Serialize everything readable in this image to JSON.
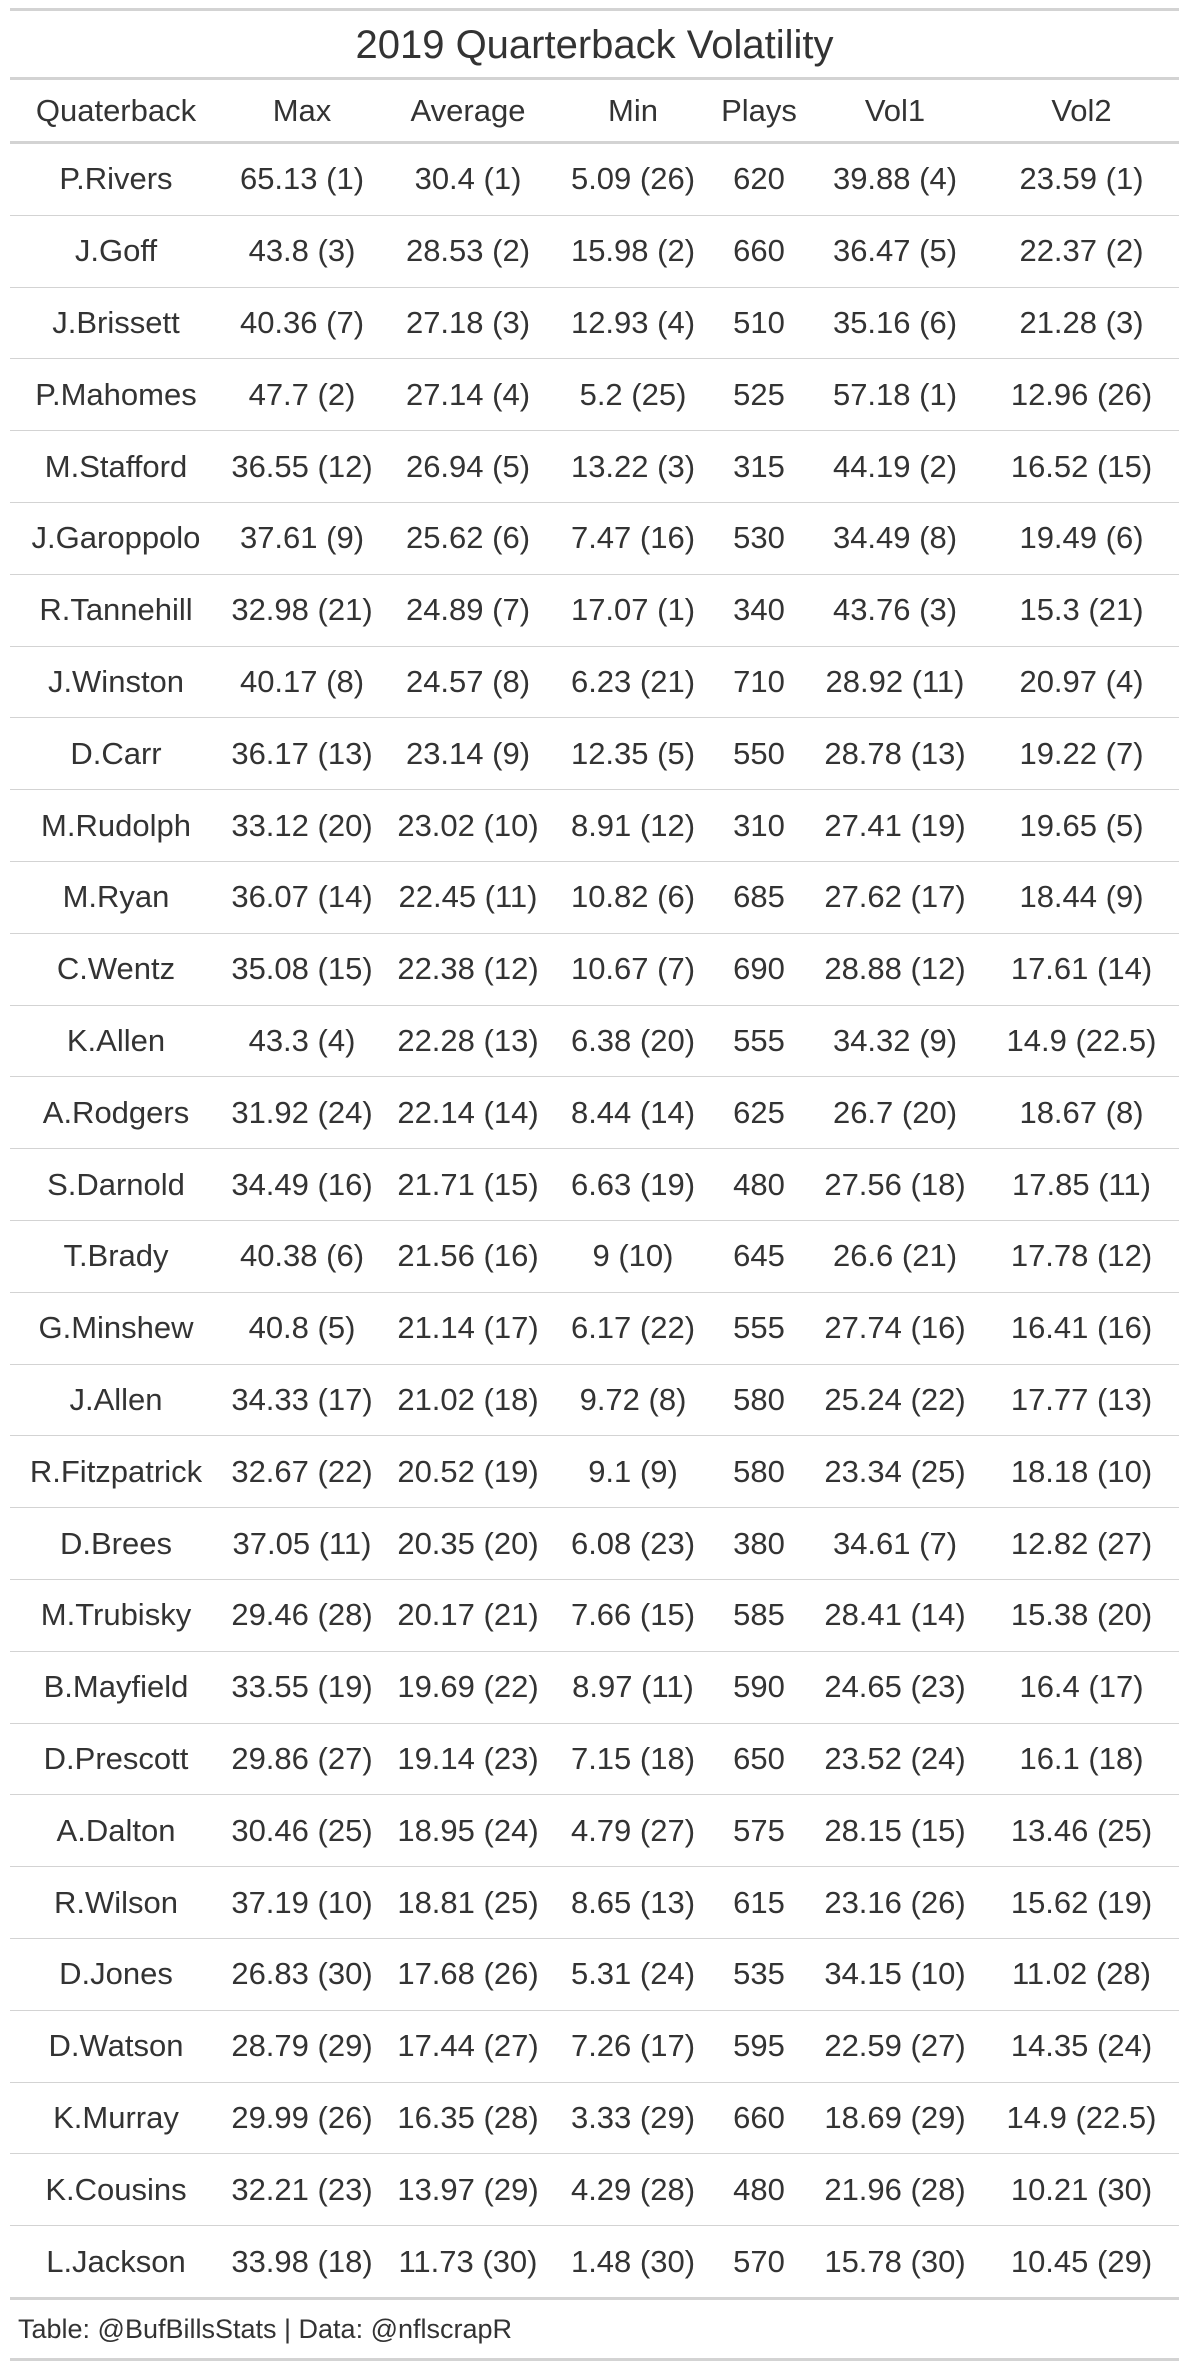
{
  "title": "2019 Quarterback Volatility",
  "columns": [
    "Quaterback",
    "Max",
    "Average",
    "Min",
    "Plays",
    "Vol1",
    "Vol2"
  ],
  "rows": [
    [
      "P.Rivers",
      "65.13 (1)",
      "30.4 (1)",
      "5.09 (26)",
      "620",
      "39.88 (4)",
      "23.59 (1)"
    ],
    [
      "J.Goff",
      "43.8 (3)",
      "28.53 (2)",
      "15.98 (2)",
      "660",
      "36.47 (5)",
      "22.37 (2)"
    ],
    [
      "J.Brissett",
      "40.36 (7)",
      "27.18 (3)",
      "12.93 (4)",
      "510",
      "35.16 (6)",
      "21.28 (3)"
    ],
    [
      "P.Mahomes",
      "47.7 (2)",
      "27.14 (4)",
      "5.2 (25)",
      "525",
      "57.18 (1)",
      "12.96 (26)"
    ],
    [
      "M.Stafford",
      "36.55 (12)",
      "26.94 (5)",
      "13.22 (3)",
      "315",
      "44.19 (2)",
      "16.52 (15)"
    ],
    [
      "J.Garoppolo",
      "37.61 (9)",
      "25.62 (6)",
      "7.47 (16)",
      "530",
      "34.49 (8)",
      "19.49 (6)"
    ],
    [
      "R.Tannehill",
      "32.98 (21)",
      "24.89 (7)",
      "17.07 (1)",
      "340",
      "43.76 (3)",
      "15.3 (21)"
    ],
    [
      "J.Winston",
      "40.17 (8)",
      "24.57 (8)",
      "6.23 (21)",
      "710",
      "28.92 (11)",
      "20.97 (4)"
    ],
    [
      "D.Carr",
      "36.17 (13)",
      "23.14 (9)",
      "12.35 (5)",
      "550",
      "28.78 (13)",
      "19.22 (7)"
    ],
    [
      "M.Rudolph",
      "33.12 (20)",
      "23.02 (10)",
      "8.91 (12)",
      "310",
      "27.41 (19)",
      "19.65 (5)"
    ],
    [
      "M.Ryan",
      "36.07 (14)",
      "22.45 (11)",
      "10.82 (6)",
      "685",
      "27.62 (17)",
      "18.44 (9)"
    ],
    [
      "C.Wentz",
      "35.08 (15)",
      "22.38 (12)",
      "10.67 (7)",
      "690",
      "28.88 (12)",
      "17.61 (14)"
    ],
    [
      "K.Allen",
      "43.3 (4)",
      "22.28 (13)",
      "6.38 (20)",
      "555",
      "34.32 (9)",
      "14.9 (22.5)"
    ],
    [
      "A.Rodgers",
      "31.92 (24)",
      "22.14 (14)",
      "8.44 (14)",
      "625",
      "26.7 (20)",
      "18.67 (8)"
    ],
    [
      "S.Darnold",
      "34.49 (16)",
      "21.71 (15)",
      "6.63 (19)",
      "480",
      "27.56 (18)",
      "17.85 (11)"
    ],
    [
      "T.Brady",
      "40.38 (6)",
      "21.56 (16)",
      "9 (10)",
      "645",
      "26.6 (21)",
      "17.78 (12)"
    ],
    [
      "G.Minshew",
      "40.8 (5)",
      "21.14 (17)",
      "6.17 (22)",
      "555",
      "27.74 (16)",
      "16.41 (16)"
    ],
    [
      "J.Allen",
      "34.33 (17)",
      "21.02 (18)",
      "9.72 (8)",
      "580",
      "25.24 (22)",
      "17.77 (13)"
    ],
    [
      "R.Fitzpatrick",
      "32.67 (22)",
      "20.52 (19)",
      "9.1 (9)",
      "580",
      "23.34 (25)",
      "18.18 (10)"
    ],
    [
      "D.Brees",
      "37.05 (11)",
      "20.35 (20)",
      "6.08 (23)",
      "380",
      "34.61 (7)",
      "12.82 (27)"
    ],
    [
      "M.Trubisky",
      "29.46 (28)",
      "20.17 (21)",
      "7.66 (15)",
      "585",
      "28.41 (14)",
      "15.38 (20)"
    ],
    [
      "B.Mayfield",
      "33.55 (19)",
      "19.69 (22)",
      "8.97 (11)",
      "590",
      "24.65 (23)",
      "16.4 (17)"
    ],
    [
      "D.Prescott",
      "29.86 (27)",
      "19.14 (23)",
      "7.15 (18)",
      "650",
      "23.52 (24)",
      "16.1 (18)"
    ],
    [
      "A.Dalton",
      "30.46 (25)",
      "18.95 (24)",
      "4.79 (27)",
      "575",
      "28.15 (15)",
      "13.46 (25)"
    ],
    [
      "R.Wilson",
      "37.19 (10)",
      "18.81 (25)",
      "8.65 (13)",
      "615",
      "23.16 (26)",
      "15.62 (19)"
    ],
    [
      "D.Jones",
      "26.83 (30)",
      "17.68 (26)",
      "5.31 (24)",
      "535",
      "34.15 (10)",
      "11.02 (28)"
    ],
    [
      "D.Watson",
      "28.79 (29)",
      "17.44 (27)",
      "7.26 (17)",
      "595",
      "22.59 (27)",
      "14.35 (24)"
    ],
    [
      "K.Murray",
      "29.99 (26)",
      "16.35 (28)",
      "3.33 (29)",
      "660",
      "18.69 (29)",
      "14.9 (22.5)"
    ],
    [
      "K.Cousins",
      "32.21 (23)",
      "13.97 (29)",
      "4.29 (28)",
      "480",
      "21.96 (28)",
      "10.21 (30)"
    ],
    [
      "L.Jackson",
      "33.98 (18)",
      "11.73 (30)",
      "1.48 (30)",
      "570",
      "15.78 (30)",
      "10.45 (29)"
    ]
  ],
  "footer": "Table: @BufBillsStats | Data: @nflscrapR"
}
